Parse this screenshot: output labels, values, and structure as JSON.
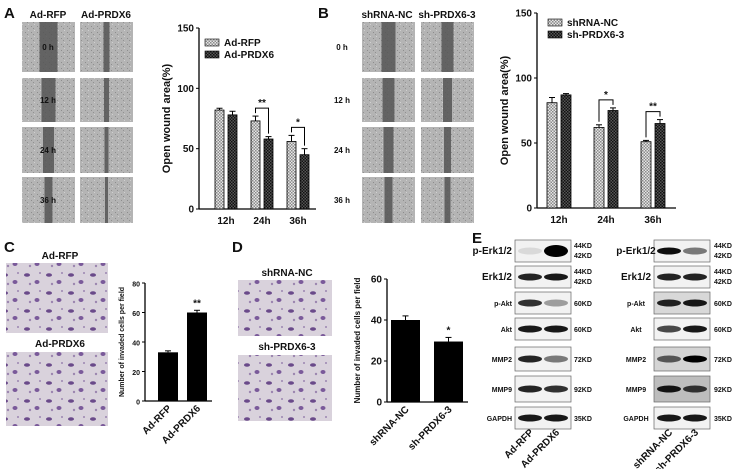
{
  "panels": {
    "a": "A",
    "b": "B",
    "c": "C",
    "d": "D",
    "e": "E"
  },
  "panel_a": {
    "columns": [
      "Ad-RFP",
      "Ad-PRDX6"
    ],
    "rows": [
      "0 h",
      "12 h",
      "24 h",
      "36 h"
    ]
  },
  "panel_b": {
    "columns": [
      "shRNA-NC",
      "sh-PRDX6-3"
    ],
    "rows": [
      "0 h",
      "12 h",
      "24 h",
      "36 h"
    ]
  },
  "panel_c": {
    "images": [
      "Ad-RFP",
      "Ad-PRDX6"
    ]
  },
  "panel_d": {
    "images": [
      "shRNA-NC",
      "sh-PRDX6-3"
    ]
  },
  "panel_e": {
    "left": {
      "proteins": [
        "p-Erk1/2",
        "Erk1/2",
        "p-Akt",
        "Akt",
        "MMP2",
        "MMP9",
        "GAPDH"
      ],
      "sizes": [
        [
          "44KD",
          "42KD"
        ],
        [
          "44KD",
          "42KD"
        ],
        [
          "60KD"
        ],
        [
          "60KD"
        ],
        [
          "72KD"
        ],
        [
          "92KD"
        ],
        [
          "35KD"
        ]
      ],
      "lanes": [
        "Ad-RFP",
        "Ad-PRDX6"
      ]
    },
    "right": {
      "proteins": [
        "p-Erk1/2",
        "Erk1/2",
        "p-Akt",
        "Akt",
        "MMP2",
        "MMP9",
        "GAPDH"
      ],
      "sizes": [
        [
          "44KD",
          "42KD"
        ],
        [
          "44KD",
          "42KD"
        ],
        [
          "60KD"
        ],
        [
          "60KD"
        ],
        [
          "72KD"
        ],
        [
          "92KD"
        ],
        [
          "35KD"
        ]
      ],
      "lanes": [
        "shRNA-NC",
        "sh-PRDX6-3"
      ]
    }
  },
  "colors": {
    "light_bar": "#c8c8c8",
    "dark_bar": "#2a2a2a",
    "solid_bar": "#000000",
    "wound": "#555555",
    "cells": "#6a4a8a"
  },
  "chart_data": [
    {
      "type": "bar",
      "panel": "A",
      "categories": [
        "12h",
        "24h",
        "36h"
      ],
      "series": [
        {
          "name": "Ad-RFP",
          "values": [
            82,
            73,
            56
          ],
          "errors": [
            1.5,
            4,
            5
          ],
          "pattern": "light-checkered"
        },
        {
          "name": "Ad-PRDX6",
          "values": [
            78,
            58,
            45
          ],
          "errors": [
            3,
            2,
            5
          ],
          "pattern": "dark-checkered"
        }
      ],
      "xlabel": "",
      "ylabel": "Open wound area(%)",
      "ylim": [
        0,
        150
      ],
      "yticks": [
        0,
        50,
        100,
        150
      ],
      "significance": [
        {
          "category": "24h",
          "label": "**"
        },
        {
          "category": "36h",
          "label": "*"
        }
      ],
      "legend": "top-left",
      "grid": false
    },
    {
      "type": "bar",
      "panel": "B",
      "categories": [
        "12h",
        "24h",
        "36h"
      ],
      "series": [
        {
          "name": "shRNA-NC",
          "values": [
            81,
            62,
            51
          ],
          "errors": [
            4,
            2,
            1
          ],
          "pattern": "light-checkered"
        },
        {
          "name": "sh-PRDX6-3",
          "values": [
            87,
            75,
            65
          ],
          "errors": [
            1,
            2,
            3
          ],
          "pattern": "dark-checkered"
        }
      ],
      "xlabel": "",
      "ylabel": "Open wound area(%)",
      "ylim": [
        0,
        150
      ],
      "yticks": [
        0,
        50,
        100,
        150
      ],
      "significance": [
        {
          "category": "24h",
          "label": "*"
        },
        {
          "category": "36h",
          "label": "**"
        }
      ],
      "legend": "top-left",
      "grid": false
    },
    {
      "type": "bar",
      "panel": "C",
      "categories": [
        "Ad-RFP",
        "Ad-PRDX6"
      ],
      "values": [
        33,
        60
      ],
      "errors": [
        1,
        1.5
      ],
      "annotations": [
        "",
        "**"
      ],
      "xlabel": "",
      "ylabel": "Number of invaded cells per field",
      "ylim": [
        0,
        80
      ],
      "yticks": [
        0,
        20,
        40,
        60,
        80
      ],
      "grid": false
    },
    {
      "type": "bar",
      "panel": "D",
      "categories": [
        "shRNA-NC",
        "sh-PRDX6-3"
      ],
      "values": [
        40,
        29.5
      ],
      "errors": [
        2,
        2
      ],
      "annotations": [
        "",
        "*"
      ],
      "xlabel": "",
      "ylabel": "Number of invaded cells per field",
      "ylim": [
        0,
        60
      ],
      "yticks": [
        0,
        20,
        40,
        60
      ],
      "grid": false
    }
  ]
}
